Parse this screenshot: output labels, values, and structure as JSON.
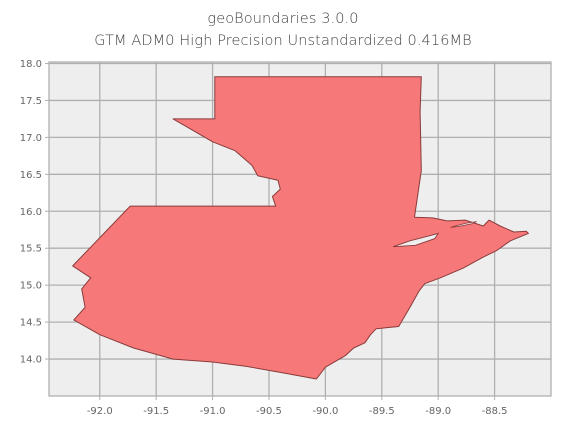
{
  "title": {
    "line1": "geoBoundaries 3.0.0",
    "line2": "GTM ADM0 High Precision Unstandardized 0.416MB"
  },
  "chart_data": {
    "type": "map",
    "title": "geoBoundaries 3.0.0 GTM ADM0 High Precision Unstandardized 0.416MB",
    "region": "Guatemala",
    "xlim": [
      -92.45,
      -88.0
    ],
    "ylim": [
      13.5,
      18.02
    ],
    "grid": true,
    "x_ticks": [
      -92.0,
      -91.5,
      -91.0,
      -90.5,
      -90.0,
      -89.5,
      -89.0,
      -88.5
    ],
    "x_tick_labels": [
      "-92.0",
      "-91.5",
      "-91.0",
      "-90.5",
      "-90.0",
      "-89.5",
      "-89.0",
      "-88.5"
    ],
    "y_ticks": [
      14.0,
      14.5,
      15.0,
      15.5,
      16.0,
      16.5,
      17.0,
      17.5,
      18.0
    ],
    "y_tick_labels": [
      "14.0",
      "14.5",
      "15.0",
      "15.5",
      "16.0",
      "16.5",
      "17.0",
      "17.5",
      "18.0"
    ],
    "outline": [
      [
        -90.98,
        17.82
      ],
      [
        -89.15,
        17.82
      ],
      [
        -89.16,
        17.35
      ],
      [
        -89.15,
        16.55
      ],
      [
        -89.21,
        15.92
      ],
      [
        -89.05,
        15.91
      ],
      [
        -88.92,
        15.87
      ],
      [
        -88.76,
        15.88
      ],
      [
        -88.6,
        15.8
      ],
      [
        -88.55,
        15.88
      ],
      [
        -88.45,
        15.8
      ],
      [
        -88.33,
        15.72
      ],
      [
        -88.22,
        15.73
      ],
      [
        -88.2,
        15.7
      ],
      [
        -88.36,
        15.6
      ],
      [
        -88.48,
        15.47
      ],
      [
        -88.6,
        15.38
      ],
      [
        -88.78,
        15.23
      ],
      [
        -88.98,
        15.1
      ],
      [
        -89.12,
        15.02
      ],
      [
        -89.17,
        14.92
      ],
      [
        -89.25,
        14.7
      ],
      [
        -89.35,
        14.44
      ],
      [
        -89.55,
        14.41
      ],
      [
        -89.6,
        14.33
      ],
      [
        -89.65,
        14.22
      ],
      [
        -89.75,
        14.15
      ],
      [
        -89.82,
        14.05
      ],
      [
        -90.0,
        13.89
      ],
      [
        -90.08,
        13.73
      ],
      [
        -90.4,
        13.82
      ],
      [
        -90.7,
        13.9
      ],
      [
        -91.0,
        13.96
      ],
      [
        -91.35,
        14.0
      ],
      [
        -91.7,
        14.15
      ],
      [
        -92.0,
        14.33
      ],
      [
        -92.23,
        14.53
      ],
      [
        -92.13,
        14.7
      ],
      [
        -92.16,
        14.95
      ],
      [
        -92.08,
        15.1
      ],
      [
        -92.24,
        15.26
      ],
      [
        -91.73,
        16.07
      ],
      [
        -90.44,
        16.07
      ],
      [
        -90.47,
        16.2
      ],
      [
        -90.4,
        16.3
      ],
      [
        -90.42,
        16.42
      ],
      [
        -90.6,
        16.48
      ],
      [
        -90.65,
        16.62
      ],
      [
        -90.8,
        16.82
      ],
      [
        -91.0,
        16.94
      ],
      [
        -91.35,
        17.25
      ],
      [
        -90.98,
        17.25
      ],
      [
        -90.98,
        17.82
      ]
    ],
    "lake_izabal": [
      [
        -89.4,
        15.52
      ],
      [
        -89.2,
        15.54
      ],
      [
        -89.03,
        15.63
      ],
      [
        -89.0,
        15.7
      ],
      [
        -89.1,
        15.66
      ],
      [
        -89.25,
        15.6
      ],
      [
        -89.4,
        15.52
      ]
    ],
    "bay_amatique": [
      [
        -88.89,
        15.78
      ],
      [
        -88.8,
        15.8
      ],
      [
        -88.7,
        15.83
      ],
      [
        -88.66,
        15.86
      ],
      [
        -88.75,
        15.84
      ],
      [
        -88.85,
        15.8
      ],
      [
        -88.89,
        15.78
      ]
    ],
    "fill_color": "#f67878",
    "edge_color": "#8a3b3b",
    "axes_background": "#eeeeee",
    "grid_color": "#b0b0b0"
  }
}
